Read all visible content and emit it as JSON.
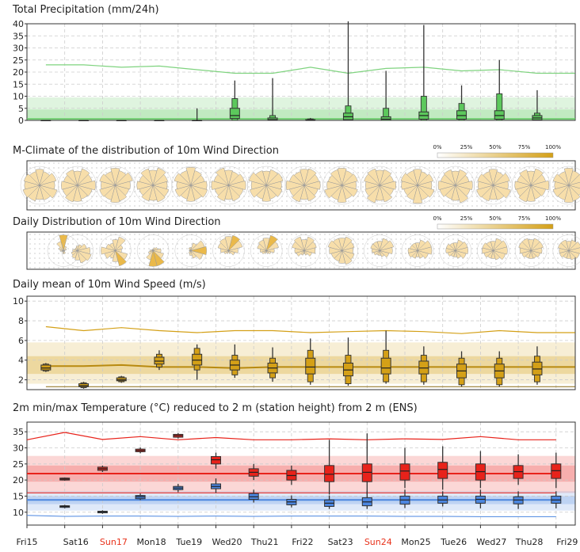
{
  "titles": {
    "precip": "Total Precipitation (mm/24h)",
    "mclimate": "M-Climate of the distribution of 10m Wind Direction",
    "daily_dir": "Daily Distribution of 10m Wind Direction",
    "wind_speed": "Daily mean of 10m Wind Speed (m/s)",
    "temperature": "2m min/max Temperature (°C) reduced to 2 m (station height) from 2 m (ENS)"
  },
  "legend_scale": {
    "labels": [
      "0%",
      "25%",
      "50%",
      "75%",
      "100%"
    ],
    "color_start": "#ffffff",
    "color_end": "#d4a017"
  },
  "x_axis": {
    "labels": [
      "Fri15",
      "Sat16",
      "Sun17",
      "Mon18",
      "Tue19",
      "Wed20",
      "Thu21",
      "Fri22",
      "Sat23",
      "Sun24",
      "Mon25",
      "Tue26",
      "Wed27",
      "Thu28",
      "Fri29"
    ],
    "highlight": [
      "Sun17",
      "Sun24"
    ],
    "highlight_color": "#e8311a"
  },
  "colors": {
    "precip_line": "#7fd37f",
    "precip_box": "#5cc85c",
    "wind_box": "#d4a017",
    "temp_max": "#e8221a",
    "temp_min": "#4b86e0",
    "rose_fill": "#f7deaa",
    "rose_dark": "#eab94a"
  },
  "chart_data": [
    {
      "type": "box",
      "name": "precipitation",
      "title": "Total Precipitation (mm/24h)",
      "ylim": [
        0,
        40
      ],
      "yticks": [
        0,
        5,
        10,
        15,
        20,
        25,
        30,
        35,
        40
      ],
      "x": [
        1,
        2,
        3,
        4,
        5,
        6,
        7,
        8,
        9,
        10,
        11,
        12,
        13,
        14
      ],
      "median": [
        0,
        0,
        0,
        0,
        0,
        2,
        0.3,
        0,
        1.5,
        0.5,
        2,
        2,
        2,
        1
      ],
      "q1": [
        0,
        0,
        0,
        0,
        0,
        0.8,
        0,
        0,
        0.3,
        0,
        0.5,
        0.5,
        0.5,
        0.2
      ],
      "q3": [
        0,
        0,
        0,
        0,
        0,
        5,
        1,
        0.3,
        3,
        1.5,
        3.5,
        4,
        4,
        2
      ],
      "p10": [
        0,
        0,
        0,
        0,
        0,
        0,
        0,
        0,
        0,
        0,
        0,
        0,
        0,
        0
      ],
      "p90": [
        0,
        0,
        0,
        0,
        0,
        9,
        2,
        0.6,
        6,
        5,
        10,
        7,
        11,
        3
      ],
      "min": [
        0,
        0,
        0,
        0,
        0,
        0,
        0,
        0,
        0,
        0,
        0,
        0,
        0,
        0
      ],
      "max": [
        0,
        0,
        0,
        0,
        5,
        16.5,
        17.5,
        1,
        41,
        20.5,
        39.5,
        14.5,
        25,
        12.5
      ],
      "climate_line": [
        23,
        23,
        22,
        22.5,
        21,
        19.5,
        19.5,
        22,
        19.5,
        21.5,
        22,
        20.5,
        21,
        19.5
      ]
    },
    {
      "type": "box",
      "name": "wind_speed",
      "title": "Daily mean of 10m Wind Speed (m/s)",
      "ylim": [
        1,
        10.5
      ],
      "yticks": [
        2,
        4,
        6,
        8,
        10
      ],
      "x": [
        1,
        2,
        3,
        4,
        5,
        6,
        7,
        8,
        9,
        10,
        11,
        12,
        13,
        14
      ],
      "median": [
        3.2,
        1.4,
        2.0,
        3.9,
        4.0,
        3.5,
        3.2,
        3.3,
        3.0,
        3.2,
        3.2,
        2.9,
        2.9,
        3.1
      ],
      "q1": [
        3.0,
        1.3,
        1.9,
        3.6,
        3.5,
        3.0,
        2.7,
        2.6,
        2.4,
        2.6,
        2.6,
        2.2,
        2.2,
        2.5
      ],
      "q3": [
        3.5,
        1.6,
        2.2,
        4.3,
        4.6,
        4.0,
        3.7,
        4.2,
        3.7,
        4.2,
        3.9,
        3.6,
        3.6,
        3.8
      ],
      "p10": [
        2.9,
        1.2,
        1.8,
        3.3,
        3.0,
        2.5,
        2.2,
        1.8,
        1.6,
        1.8,
        1.8,
        1.5,
        1.5,
        1.8
      ],
      "p90": [
        3.6,
        1.7,
        2.3,
        4.6,
        5.2,
        4.5,
        4.2,
        5.0,
        4.5,
        5.0,
        4.5,
        4.2,
        4.2,
        4.4
      ],
      "min": [
        2.8,
        1.1,
        1.7,
        3.0,
        2.0,
        2.2,
        1.8,
        1.5,
        1.4,
        1.6,
        1.5,
        1.3,
        1.3,
        1.5
      ],
      "max": [
        3.7,
        1.8,
        2.4,
        5.0,
        5.6,
        5.6,
        5.3,
        6.2,
        6.3,
        7.0,
        5.4,
        4.9,
        4.9,
        5.4
      ],
      "climate_max": [
        7.4,
        7.0,
        7.3,
        7.0,
        6.8,
        7.0,
        7.0,
        6.8,
        6.9,
        7.0,
        6.9,
        6.7,
        7.0,
        6.8
      ],
      "climate_median": [
        3.4,
        3.4,
        3.5,
        3.3,
        3.3,
        3.2,
        3.3,
        3.3,
        3.3,
        3.3,
        3.3,
        3.3,
        3.3,
        3.3
      ],
      "climate_min": [
        1.3,
        1.3,
        1.3,
        1.3,
        1.3,
        1.3,
        1.3,
        1.3,
        1.3,
        1.3,
        1.3,
        1.3,
        1.3,
        1.3
      ]
    },
    {
      "type": "box",
      "name": "temperature",
      "title": "2m min/max Temperature (°C) reduced to 2 m (station height) from 2 m (ENS)",
      "ylim": [
        6,
        38
      ],
      "yticks": [
        10,
        15,
        20,
        25,
        30,
        35
      ],
      "x_max": [
        0.5,
        1.5,
        2.5,
        3.5,
        4.5,
        5.5,
        6.5,
        7.5,
        8.5,
        9.5,
        10.5,
        11.5,
        12.5,
        13.5
      ],
      "max_median": [
        20.3,
        23.5,
        29.2,
        33.8,
        26.3,
        22.4,
        21.4,
        21.8,
        22.4,
        22.8,
        23.3,
        22.6,
        22.6,
        22.9
      ],
      "max_q1": [
        20.0,
        23.0,
        28.8,
        33.3,
        25.0,
        21.2,
        20.0,
        19.5,
        19.5,
        20.0,
        20.5,
        20.0,
        20.5,
        20.5
      ],
      "max_q3": [
        20.6,
        24.0,
        29.6,
        34.2,
        27.3,
        23.5,
        23.0,
        24.5,
        25.0,
        25.0,
        25.5,
        25.0,
        24.5,
        25.0
      ],
      "max_min": [
        19.8,
        22.5,
        28.3,
        32.9,
        23.5,
        20.0,
        18.5,
        15.5,
        15.5,
        17.5,
        17.0,
        17.5,
        18.5,
        17.5
      ],
      "max_max": [
        20.8,
        24.5,
        30.1,
        34.6,
        28.5,
        25.0,
        24.5,
        32.5,
        34.5,
        30.0,
        30.5,
        29.0,
        28.0,
        28.5
      ],
      "x_min": [
        1,
        2,
        3,
        4,
        5,
        6,
        7,
        8,
        9,
        10,
        11,
        12,
        13,
        14
      ],
      "min_median": [
        11.8,
        10.1,
        14.8,
        17.5,
        18.0,
        14.8,
        13.2,
        12.8,
        13.2,
        13.8,
        13.8,
        14.0,
        13.8,
        13.8
      ],
      "min_q1": [
        11.5,
        9.8,
        14.2,
        17.0,
        17.3,
        14.0,
        12.3,
        11.8,
        12.0,
        12.5,
        12.8,
        12.8,
        12.6,
        12.8
      ],
      "min_q3": [
        12.0,
        10.3,
        15.2,
        18.0,
        18.8,
        15.8,
        14.0,
        13.8,
        14.5,
        15.0,
        15.0,
        15.0,
        14.8,
        15.0
      ],
      "min_min": [
        11.2,
        9.5,
        13.8,
        16.2,
        16.0,
        13.0,
        11.5,
        11.0,
        11.0,
        11.3,
        11.8,
        11.2,
        11.0,
        11.2
      ],
      "min_max": [
        12.3,
        10.6,
        15.8,
        18.8,
        20.5,
        17.0,
        15.2,
        15.2,
        16.5,
        17.0,
        16.5,
        17.0,
        16.5,
        16.5
      ],
      "climate_max_line": [
        32.5,
        34.8,
        32.6,
        33.5,
        32.5,
        33.2,
        32.5,
        32.5,
        32.8,
        32.5,
        32.8,
        32.6,
        33.5,
        32.5
      ],
      "climate_min_line": [
        9.0,
        8.7,
        8.8,
        8.8,
        8.7,
        8.8,
        8.7,
        8.8,
        8.8,
        8.8,
        8.7,
        8.7,
        8.6,
        8.6
      ]
    }
  ]
}
